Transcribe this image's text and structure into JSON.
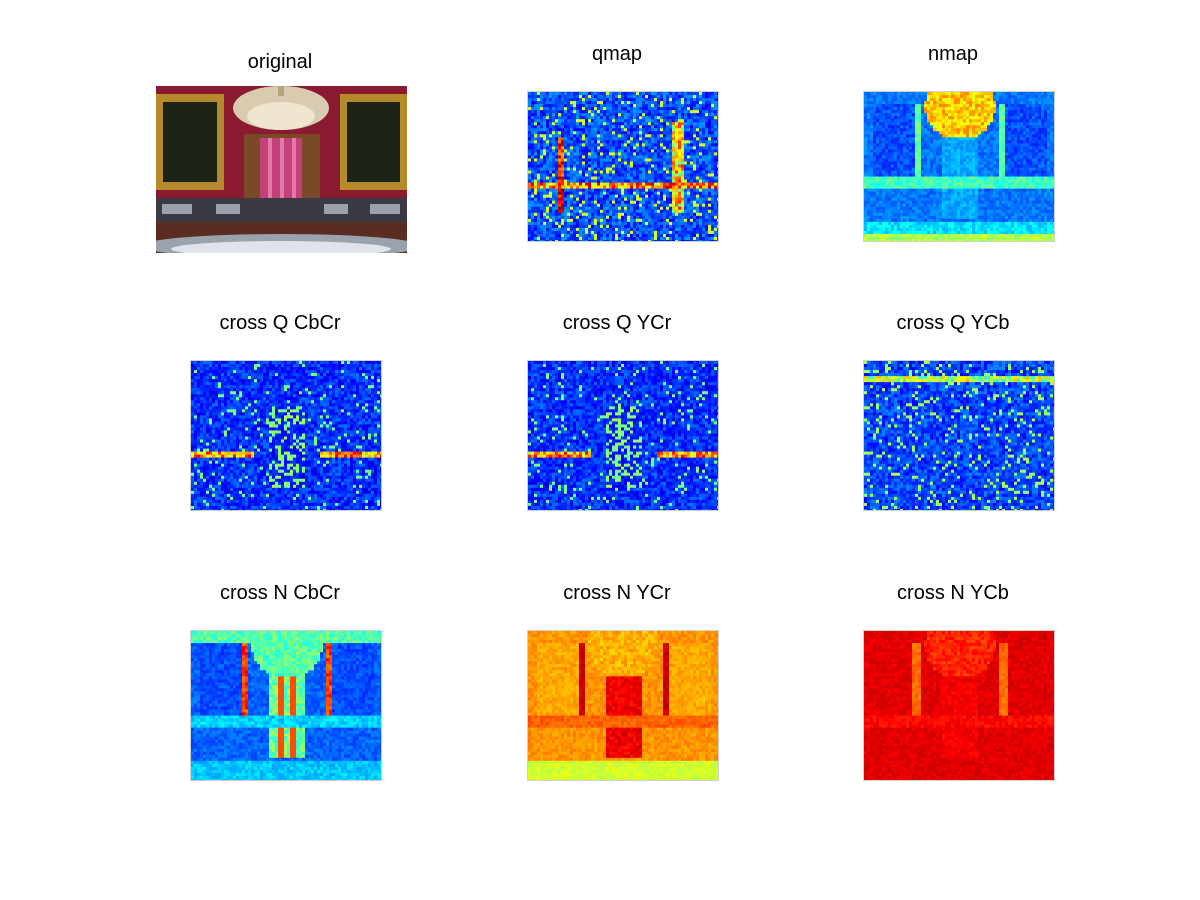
{
  "figure": {
    "panels": [
      {
        "id": "original",
        "title": "original",
        "kind": "photo",
        "colormap": "rgb"
      },
      {
        "id": "qmap",
        "title": "qmap",
        "kind": "heatmap",
        "colormap": "jet",
        "level": "low-sparse"
      },
      {
        "id": "nmap",
        "title": "nmap",
        "kind": "heatmap",
        "colormap": "jet",
        "level": "mid"
      },
      {
        "id": "cross-q-cbcr",
        "title": "cross Q CbCr",
        "kind": "heatmap",
        "colormap": "jet",
        "level": "low"
      },
      {
        "id": "cross-q-ycr",
        "title": "cross Q YCr",
        "kind": "heatmap",
        "colormap": "jet",
        "level": "low"
      },
      {
        "id": "cross-q-ycb",
        "title": "cross Q YCb",
        "kind": "heatmap",
        "colormap": "jet",
        "level": "low"
      },
      {
        "id": "cross-n-cbcr",
        "title": "cross N CbCr",
        "kind": "heatmap",
        "colormap": "jet",
        "level": "mid"
      },
      {
        "id": "cross-n-ycr",
        "title": "cross N YCr",
        "kind": "heatmap",
        "colormap": "jet",
        "level": "high"
      },
      {
        "id": "cross-n-ycb",
        "title": "cross N YCb",
        "kind": "heatmap",
        "colormap": "jet",
        "level": "very-high"
      }
    ]
  }
}
